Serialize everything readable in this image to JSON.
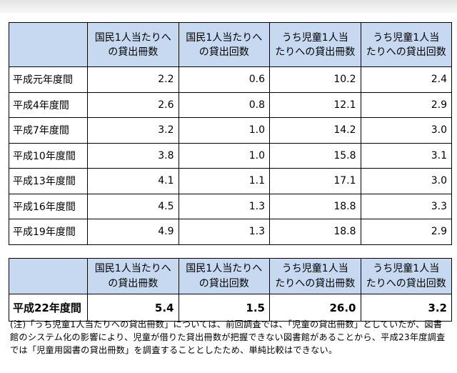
{
  "headers": [
    "国民1人当たりへの貸出冊数",
    "国民1人当たりへの貸出回数",
    "うち児童1人当たりへの貸出冊数",
    "うち児童1人当たりへの貸出回数"
  ],
  "headers_lines": [
    [
      "国民1人当たりへ",
      "の貸出冊数"
    ],
    [
      "国民1人当たりへ",
      "の貸出回数"
    ],
    [
      "うち児童1人当",
      "たりへの貸出冊数"
    ],
    [
      "うち児童1人当",
      "たりへの貸出回数"
    ]
  ],
  "rows": [
    {
      "label": "平成元年度間",
      "v1": "2.2",
      "v2": "0.6",
      "v3": "10.2",
      "v4": "2.4"
    },
    {
      "label": "平成4年度間",
      "v1": "2.6",
      "v2": "0.8",
      "v3": "12.1",
      "v4": "2.9"
    },
    {
      "label": "平成7年度間",
      "v1": "3.2",
      "v2": "1.0",
      "v3": "14.2",
      "v4": "3.0"
    },
    {
      "label": "平成10年度間",
      "v1": "3.8",
      "v2": "1.0",
      "v3": "15.8",
      "v4": "3.1"
    },
    {
      "label": "平成13年度間",
      "v1": "4.1",
      "v2": "1.1",
      "v3": "17.1",
      "v4": "3.0"
    },
    {
      "label": "平成16年度間",
      "v1": "4.5",
      "v2": "1.3",
      "v3": "18.8",
      "v4": "3.3"
    },
    {
      "label": "平成19年度間",
      "v1": "4.9",
      "v2": "1.3",
      "v3": "18.8",
      "v4": "2.9"
    }
  ],
  "row2": {
    "label": "平成22年度間",
    "v1": "5.4",
    "v2": "1.5",
    "v3": "26.0",
    "v4": "3.2"
  },
  "note": "(注)「うち児童1人当たりへの貸出冊数」については、前回調査では、「児童の貸出冊数」としていたが、図書館のシステム化の影響により、児童が借りた貸出冊数が把握できない図書館があることから、平成23年度調査では「児童用図書の貸出冊数」を調査することとしたため、単純比較はできない。",
  "colors": {
    "header_bg": "#c6d9f1",
    "border": "#000000"
  }
}
